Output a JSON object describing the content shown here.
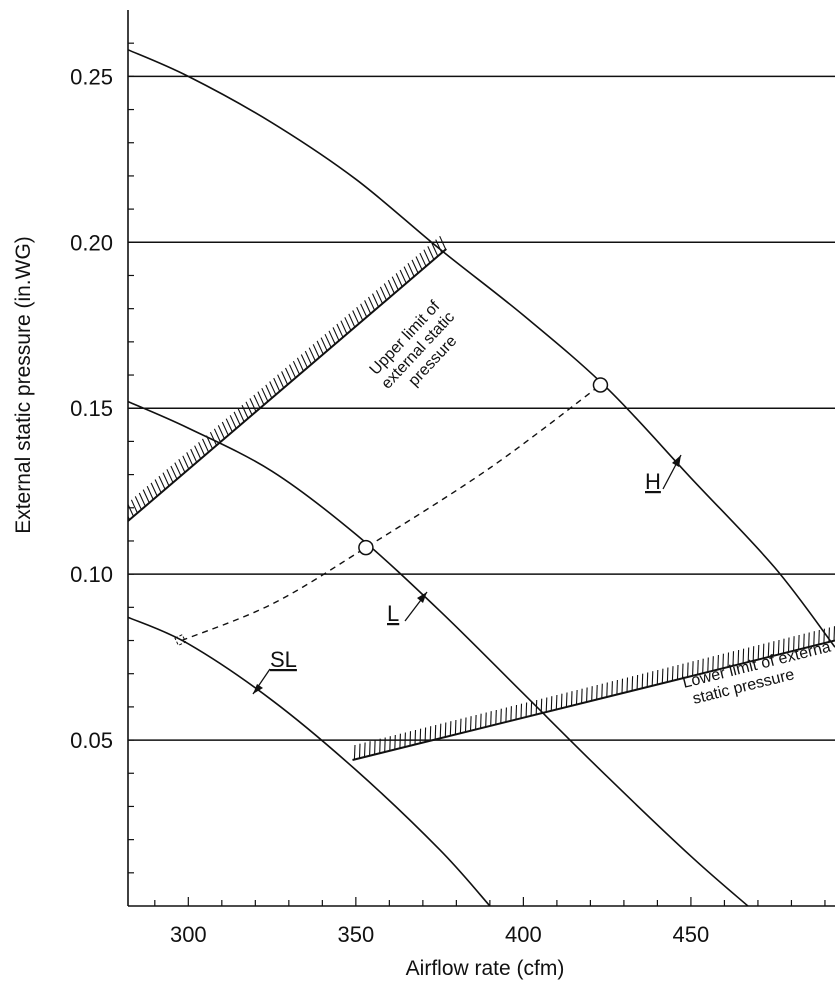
{
  "chart_data": {
    "type": "line",
    "title": "",
    "xlabel": "Airflow rate (cfm)",
    "ylabel": "External static pressure (in.WG)",
    "xlim": [
      282,
      493
    ],
    "ylim": [
      0,
      0.27
    ],
    "xticks": [
      300,
      350,
      400,
      450
    ],
    "xtick_labels": [
      "300",
      "350",
      "400",
      "450"
    ],
    "yticks": [
      0.05,
      0.1,
      0.15,
      0.2,
      0.25
    ],
    "ytick_labels": [
      "0.05",
      "0.10",
      "0.15",
      "0.20",
      "0.25"
    ],
    "grid": "horizontal",
    "series": [
      {
        "name": "H",
        "x": [
          282,
          300,
          325,
          350,
          375,
          400,
          425,
          450,
          475,
          493
        ],
        "y": [
          0.258,
          0.25,
          0.236,
          0.219,
          0.198,
          0.178,
          0.156,
          0.129,
          0.102,
          0.078
        ]
      },
      {
        "name": "L",
        "x": [
          282,
          300,
          325,
          350,
          375,
          400,
          425,
          450,
          467
        ],
        "y": [
          0.152,
          0.144,
          0.131,
          0.112,
          0.089,
          0.064,
          0.039,
          0.015,
          0.0
        ]
      },
      {
        "name": "SL",
        "x": [
          282,
          300,
          325,
          350,
          375,
          390
        ],
        "y": [
          0.087,
          0.079,
          0.062,
          0.041,
          0.017,
          0.0
        ]
      }
    ],
    "operating_points": [
      {
        "x": 353,
        "y": 0.108
      },
      {
        "x": 423,
        "y": 0.157
      }
    ],
    "dashed_line": {
      "x": [
        298,
        325,
        353,
        390,
        423
      ],
      "y": [
        0.08,
        0.091,
        0.108,
        0.132,
        0.157
      ]
    },
    "limits": [
      {
        "name": "Upper limit",
        "x": [
          282,
          377
        ],
        "y": [
          0.116,
          0.198
        ]
      },
      {
        "name": "Lower limit",
        "x": [
          349,
          493
        ],
        "y": [
          0.044,
          0.08
        ]
      }
    ],
    "annotations": {
      "upper_limit": [
        "Upper limit of",
        "external static",
        "pressure"
      ],
      "lower_limit": [
        "Lower limit of externa",
        "static pressure"
      ]
    }
  }
}
